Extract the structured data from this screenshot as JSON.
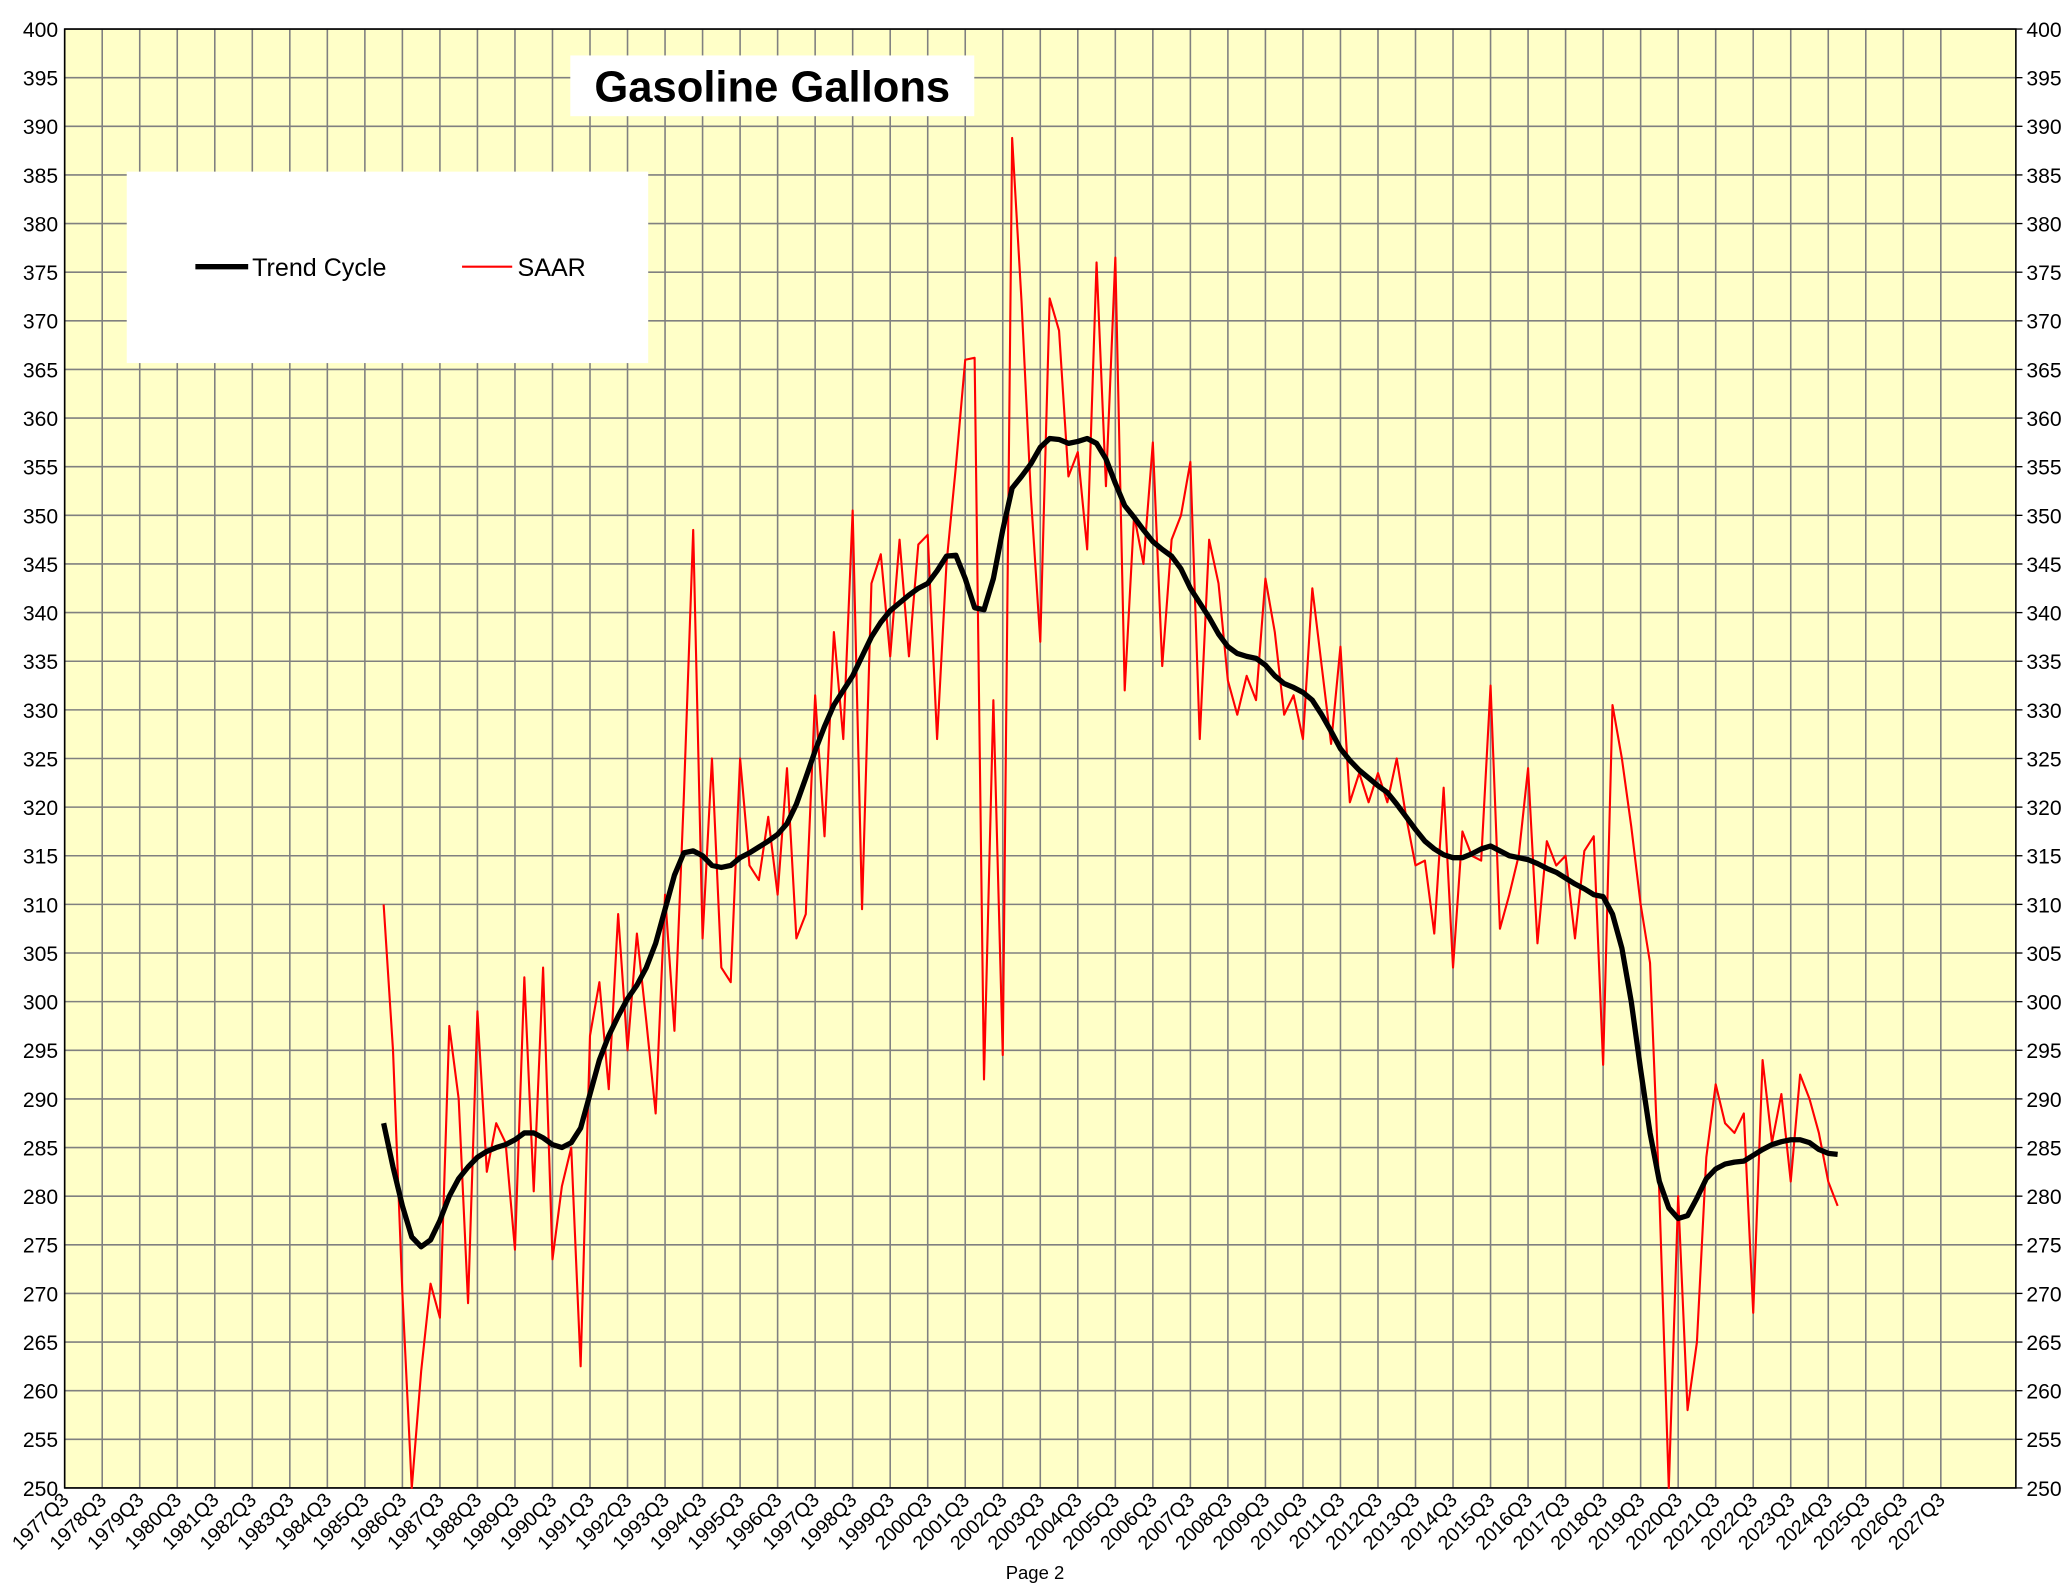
{
  "chart_data": {
    "type": "line",
    "title": "Gasoline Gallons",
    "footer": "Page 2",
    "x": [
      "1986Q1",
      "1986Q2",
      "1986Q3",
      "1986Q4",
      "1987Q1",
      "1987Q2",
      "1987Q3",
      "1987Q4",
      "1988Q1",
      "1988Q2",
      "1988Q3",
      "1988Q4",
      "1989Q1",
      "1989Q2",
      "1989Q3",
      "1989Q4",
      "1990Q1",
      "1990Q2",
      "1990Q3",
      "1990Q4",
      "1991Q1",
      "1991Q2",
      "1991Q3",
      "1991Q4",
      "1992Q1",
      "1992Q2",
      "1992Q3",
      "1992Q4",
      "1993Q1",
      "1993Q2",
      "1993Q3",
      "1993Q4",
      "1994Q1",
      "1994Q2",
      "1994Q3",
      "1994Q4",
      "1995Q1",
      "1995Q2",
      "1995Q3",
      "1995Q4",
      "1996Q1",
      "1996Q2",
      "1996Q3",
      "1996Q4",
      "1997Q1",
      "1997Q2",
      "1997Q3",
      "1997Q4",
      "1998Q1",
      "1998Q2",
      "1998Q3",
      "1998Q4",
      "1999Q1",
      "1999Q2",
      "1999Q3",
      "1999Q4",
      "2000Q1",
      "2000Q2",
      "2000Q3",
      "2000Q4",
      "2001Q1",
      "2001Q2",
      "2001Q3",
      "2001Q4",
      "2002Q1",
      "2002Q2",
      "2002Q3",
      "2002Q4",
      "2003Q1",
      "2003Q2",
      "2003Q3",
      "2003Q4",
      "2004Q1",
      "2004Q2",
      "2004Q3",
      "2004Q4",
      "2005Q1",
      "2005Q2",
      "2005Q3",
      "2005Q4",
      "2006Q1",
      "2006Q2",
      "2006Q3",
      "2006Q4",
      "2007Q1",
      "2007Q2",
      "2007Q3",
      "2007Q4",
      "2008Q1",
      "2008Q2",
      "2008Q3",
      "2008Q4",
      "2009Q1",
      "2009Q2",
      "2009Q3",
      "2009Q4",
      "2010Q1",
      "2010Q2",
      "2010Q3",
      "2010Q4",
      "2011Q1",
      "2011Q2",
      "2011Q3",
      "2011Q4",
      "2012Q1",
      "2012Q2",
      "2012Q3",
      "2012Q4",
      "2013Q1",
      "2013Q2",
      "2013Q3",
      "2013Q4",
      "2014Q1",
      "2014Q2",
      "2014Q3",
      "2014Q4",
      "2015Q1",
      "2015Q2",
      "2015Q3",
      "2015Q4",
      "2016Q1",
      "2016Q2",
      "2016Q3",
      "2016Q4",
      "2017Q1",
      "2017Q2",
      "2017Q3",
      "2017Q4",
      "2018Q1",
      "2018Q2",
      "2018Q3",
      "2018Q4",
      "2019Q1",
      "2019Q2",
      "2019Q3",
      "2019Q4",
      "2020Q1",
      "2020Q2",
      "2020Q3",
      "2020Q4",
      "2021Q1",
      "2021Q2",
      "2021Q3",
      "2021Q4",
      "2022Q1",
      "2022Q2",
      "2022Q3",
      "2022Q4",
      "2023Q1",
      "2023Q2",
      "2023Q3",
      "2023Q4",
      "2024Q1",
      "2024Q2",
      "2024Q3",
      "2024Q4"
    ],
    "series": [
      {
        "name": "Trend Cycle",
        "color": "#000000",
        "width": 4,
        "values": [
          287.5,
          283,
          279,
          275.8,
          274.8,
          275.5,
          277.5,
          280,
          281.8,
          283,
          284,
          284.6,
          285,
          285.3,
          285.8,
          286.5,
          286.5,
          286,
          285.3,
          285,
          285.5,
          287,
          290.5,
          294,
          296.5,
          298.5,
          300.3,
          301.7,
          303.5,
          306,
          309.5,
          313,
          315.3,
          315.5,
          315,
          314,
          313.8,
          314,
          314.8,
          315.3,
          315.9,
          316.5,
          317.2,
          318.3,
          320.3,
          323,
          325.8,
          328.3,
          330.5,
          332,
          333.5,
          335.5,
          337.5,
          339,
          340.2,
          341,
          341.8,
          342.5,
          343,
          344.3,
          345.8,
          345.9,
          343.5,
          340.5,
          340.3,
          343.5,
          348.5,
          352.8,
          354,
          355.3,
          357,
          357.9,
          357.8,
          357.4,
          357.6,
          357.9,
          357.4,
          355.8,
          353.3,
          351,
          349.8,
          348.5,
          347.3,
          346.5,
          345.8,
          344.5,
          342.5,
          341,
          339.5,
          337.8,
          336.5,
          335.8,
          335.5,
          335.3,
          334.6,
          333.5,
          332.7,
          332.3,
          331.8,
          331,
          329.5,
          327.8,
          326,
          324.8,
          323.8,
          323,
          322.2,
          321.5,
          320.3,
          319,
          317.7,
          316.5,
          315.7,
          315.1,
          314.8,
          314.8,
          315.2,
          315.7,
          316,
          315.5,
          315,
          314.8,
          314.6,
          314.2,
          313.7,
          313.3,
          312.7,
          312.1,
          311.6,
          311,
          310.8,
          309,
          305.5,
          300,
          293,
          286.5,
          281.5,
          278.8,
          277.7,
          278,
          279.8,
          281.8,
          282.8,
          283.3,
          283.5,
          283.6,
          284.2,
          284.8,
          285.3,
          285.6,
          285.8,
          285.8,
          285.5,
          284.8,
          284.4,
          284.3
        ]
      },
      {
        "name": "SAAR",
        "color": "#ff0000",
        "width": 1.6,
        "values": [
          310,
          295,
          270,
          250,
          262,
          271,
          267.5,
          297.5,
          290,
          269,
          299,
          282.5,
          287.5,
          285.5,
          274.5,
          302.5,
          280.5,
          303.5,
          273.5,
          281,
          285,
          262.5,
          296.5,
          302,
          291,
          309,
          295,
          307,
          298,
          288.5,
          311,
          297,
          321,
          348.5,
          306.5,
          325,
          303.5,
          302,
          325,
          314,
          312.5,
          319,
          311,
          324,
          306.5,
          309,
          331.5,
          317,
          338,
          327,
          350.5,
          309.5,
          343,
          346,
          335.5,
          347.5,
          335.5,
          347,
          348,
          327,
          345,
          355,
          366,
          366.2,
          292,
          331,
          294.5,
          388.8,
          372,
          352,
          337,
          372.3,
          369,
          354,
          356.5,
          346.5,
          376,
          353,
          376.5,
          332,
          350,
          345,
          357.5,
          334.5,
          347.5,
          350,
          355.5,
          327,
          347.5,
          343,
          333,
          329.5,
          333.5,
          331,
          343.5,
          338,
          329.5,
          331.5,
          327,
          342.5,
          334.5,
          326.5,
          336.5,
          320.5,
          323.5,
          320.5,
          323.5,
          320.5,
          325,
          319,
          314,
          314.5,
          307,
          322,
          303.5,
          317.5,
          315,
          314.5,
          332.5,
          307.5,
          311,
          315,
          324,
          306,
          316.5,
          314,
          315,
          306.5,
          315.5,
          317,
          293.5,
          330.5,
          325,
          318,
          310,
          304,
          280,
          250,
          280,
          258,
          265,
          284,
          291.5,
          287.5,
          286.5,
          288.5,
          268,
          294,
          285.5,
          290.5,
          281.5,
          292.5,
          290,
          286.5,
          281.5,
          279
        ]
      }
    ],
    "xlim": [
      "1977Q3",
      "2029Q3"
    ],
    "xticks": [
      "1977Q3",
      "1978Q3",
      "1979Q3",
      "1980Q3",
      "1981Q3",
      "1982Q3",
      "1983Q3",
      "1984Q3",
      "1985Q3",
      "1986Q3",
      "1987Q3",
      "1988Q3",
      "1989Q3",
      "1990Q3",
      "1991Q3",
      "1992Q3",
      "1993Q3",
      "1994Q3",
      "1995Q3",
      "1996Q3",
      "1997Q3",
      "1998Q3",
      "1999Q3",
      "2000Q3",
      "2001Q3",
      "2002Q3",
      "2003Q3",
      "2004Q3",
      "2005Q3",
      "2006Q3",
      "2007Q3",
      "2008Q3",
      "2009Q3",
      "2010Q3",
      "2011Q3",
      "2012Q3",
      "2013Q3",
      "2014Q3",
      "2015Q3",
      "2016Q3",
      "2017Q3",
      "2018Q3",
      "2019Q3",
      "2020Q3",
      "2021Q3",
      "2022Q3",
      "2023Q3",
      "2024Q3",
      "2025Q3",
      "2026Q3",
      "2027Q3"
    ],
    "ylim": [
      250,
      400
    ],
    "yticks": [
      250,
      255,
      260,
      265,
      270,
      275,
      280,
      285,
      290,
      295,
      300,
      305,
      310,
      315,
      320,
      325,
      330,
      335,
      340,
      345,
      350,
      355,
      360,
      365,
      370,
      375,
      380,
      385,
      390,
      395,
      400
    ],
    "y2lim": [
      250,
      400
    ],
    "y2ticks": [
      250,
      255,
      260,
      265,
      270,
      275,
      280,
      285,
      290,
      295,
      300,
      305,
      310,
      315,
      320,
      325,
      330,
      335,
      340,
      345,
      350,
      355,
      360,
      365,
      370,
      375,
      380,
      385,
      390,
      395,
      400
    ],
    "grid": true,
    "legend": "upper left",
    "background": "#ffffc8"
  }
}
